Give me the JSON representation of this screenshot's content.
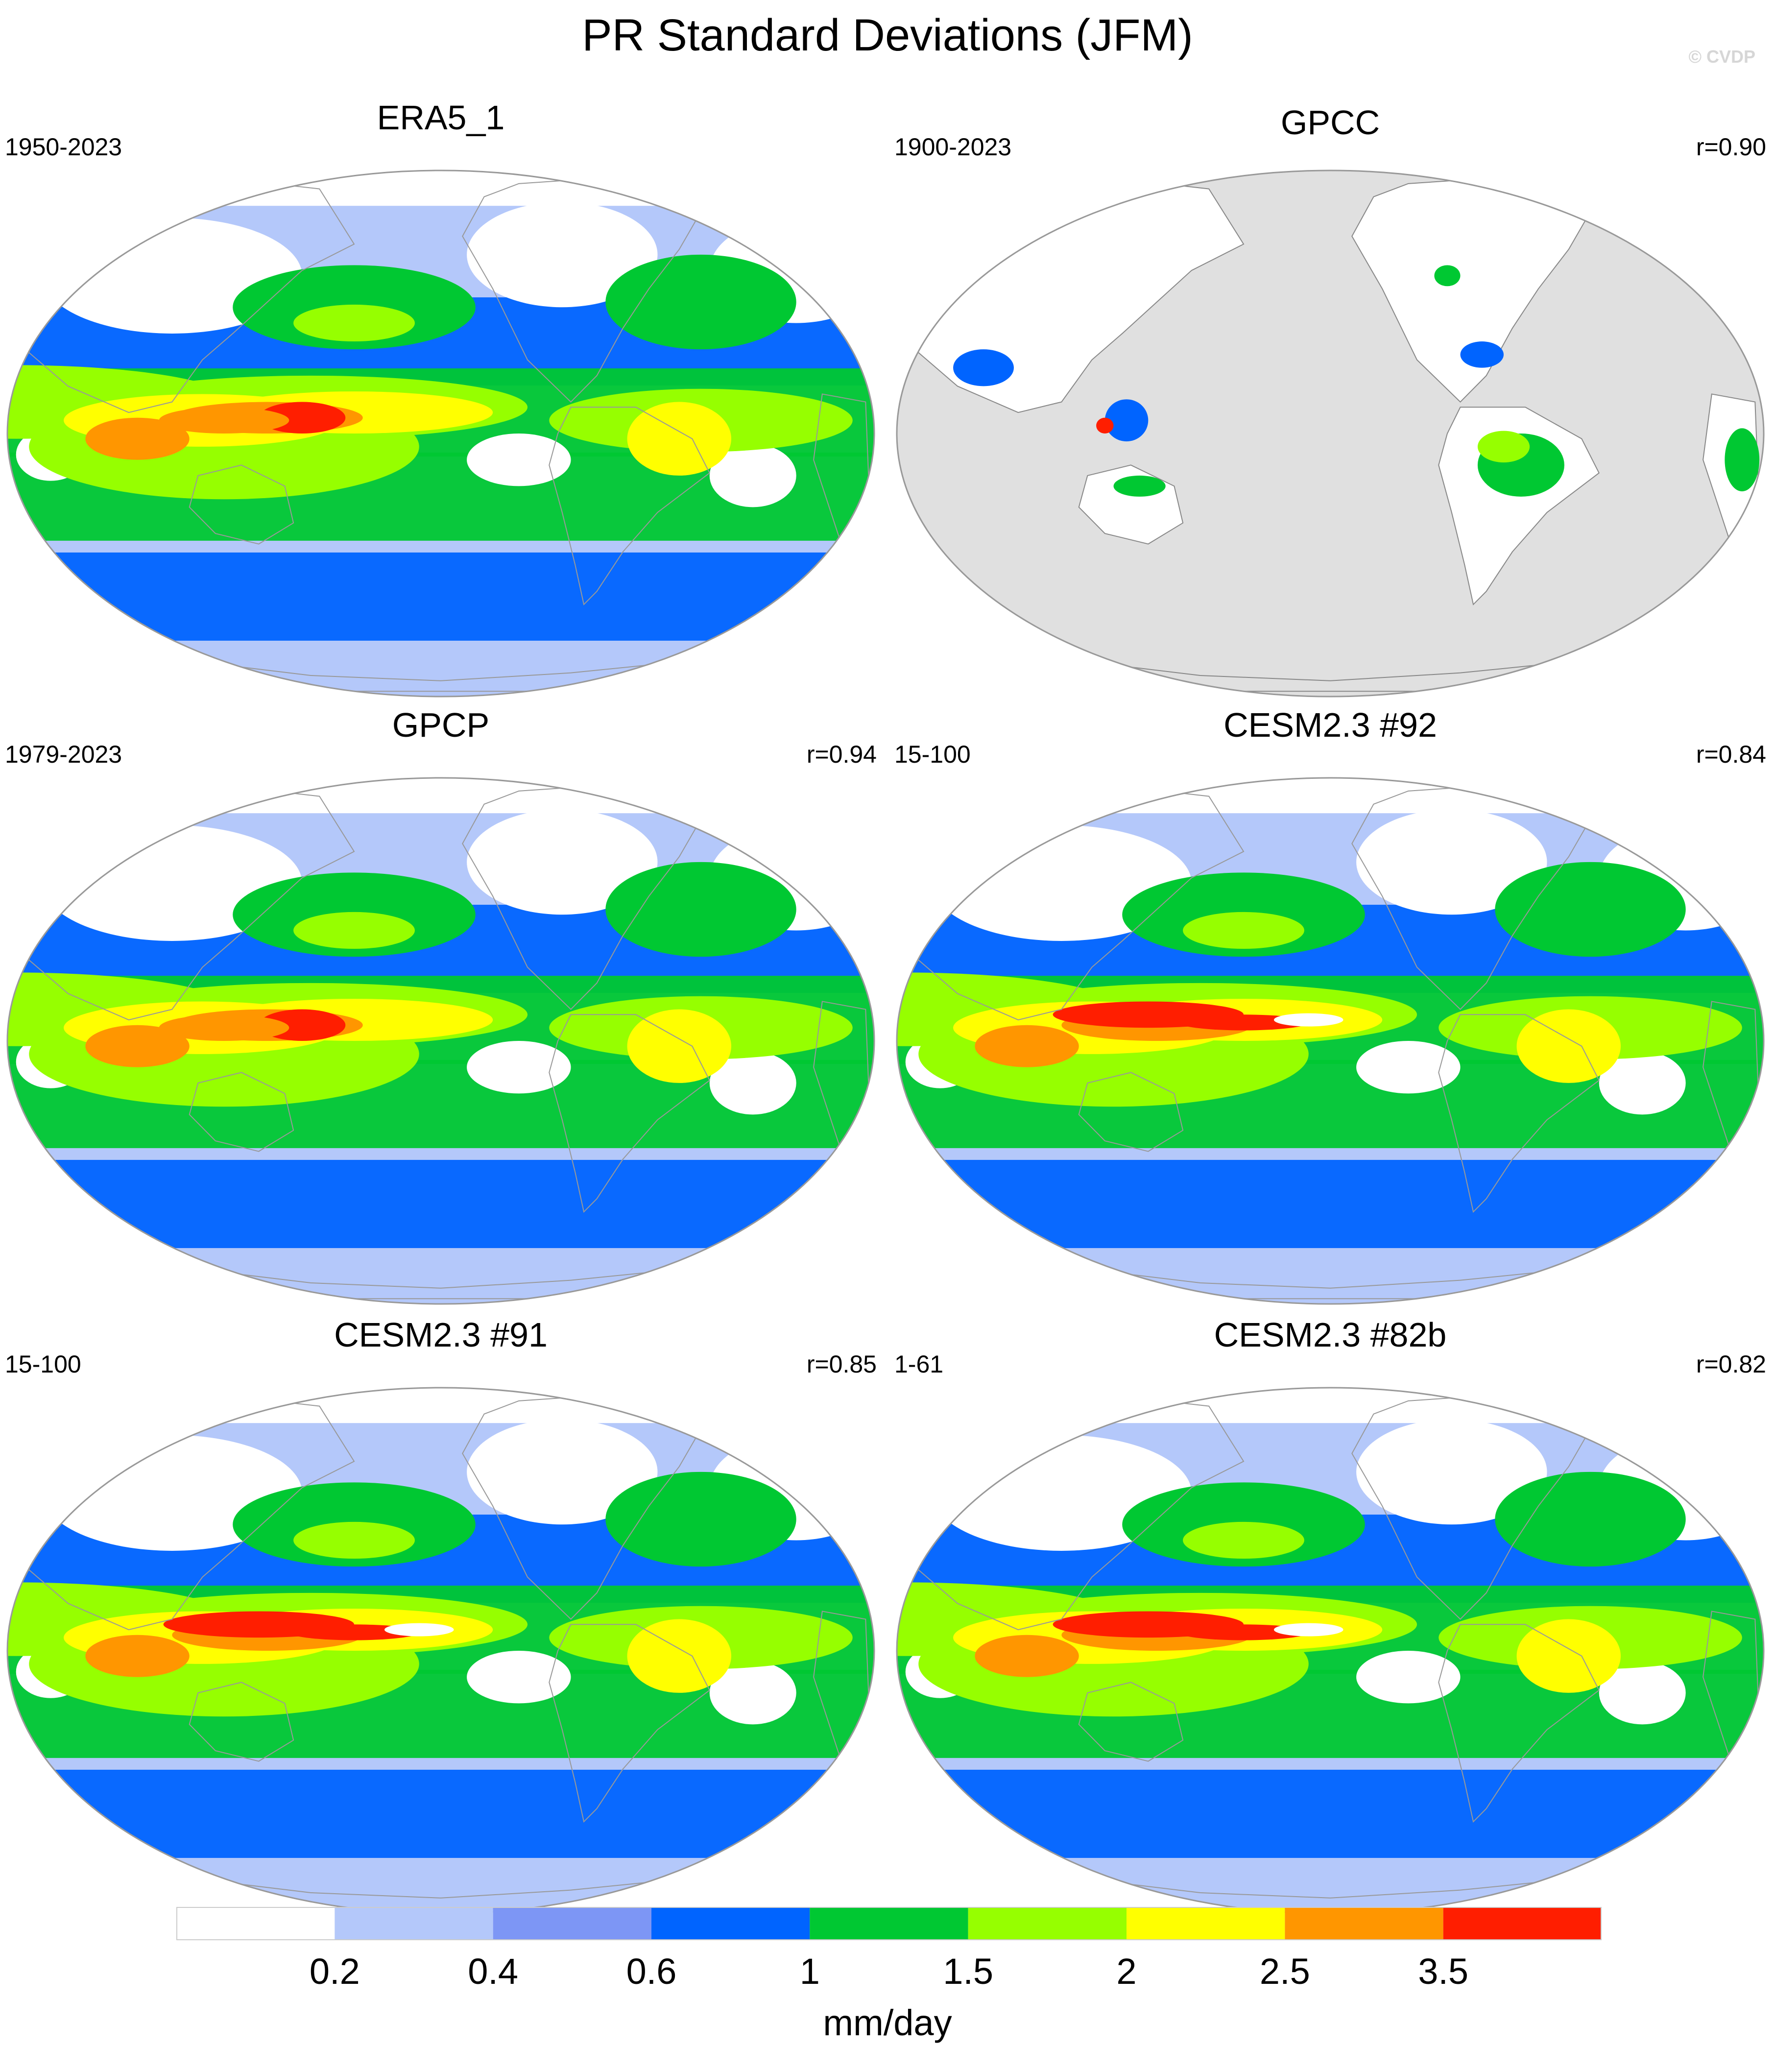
{
  "title": "PR Standard Deviations (JFM)",
  "watermark": "© CVDP",
  "panels": [
    {
      "name": "ERA5_1",
      "years": "1950-2023",
      "corr": "",
      "style": "full"
    },
    {
      "name": "GPCC",
      "years": "1900-2023",
      "corr": "r=0.90",
      "style": "land"
    },
    {
      "name": "GPCP",
      "years": "1979-2023",
      "corr": "r=0.94",
      "style": "full"
    },
    {
      "name": "CESM2.3 #92",
      "years": "15-100",
      "corr": "r=0.84",
      "style": "model"
    },
    {
      "name": "CESM2.3 #91",
      "years": "15-100",
      "corr": "r=0.85",
      "style": "model"
    },
    {
      "name": "CESM2.3 #82b",
      "years": "1-61",
      "corr": "r=0.82",
      "style": "model"
    }
  ],
  "colorbar": {
    "colors": [
      "#ffffff",
      "#b4c8fa",
      "#7d96f5",
      "#0064ff",
      "#00c832",
      "#96ff00",
      "#ffff00",
      "#ff9600",
      "#ff1e00"
    ],
    "labels": [
      "0.2",
      "0.4",
      "0.6",
      "1",
      "1.5",
      "2",
      "2.5",
      "3.5"
    ],
    "units": "mm/day"
  },
  "missing_color": "#e0e0e0"
}
